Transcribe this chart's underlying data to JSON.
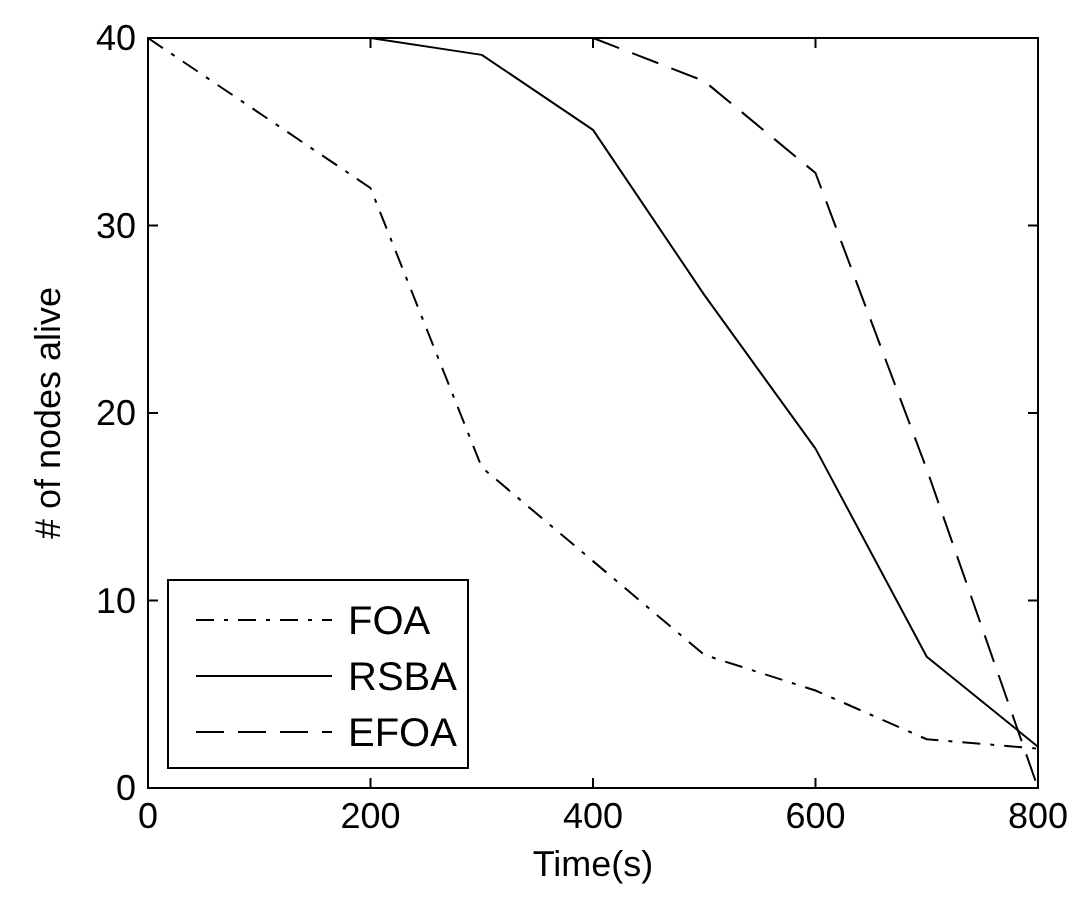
{
  "chart_data": {
    "type": "line",
    "xlabel": "Time(s)",
    "ylabel": "# of nodes alive",
    "xlim": [
      0,
      800
    ],
    "xticks": [
      0,
      200,
      400,
      600,
      800
    ],
    "ylim": [
      0,
      40
    ],
    "yticks": [
      0,
      10,
      20,
      30,
      40
    ],
    "grid": false,
    "legend": "bottom left",
    "marker": "none",
    "series": [
      {
        "name": "FOA",
        "color": "#000000",
        "line_style": "dashdot",
        "x": [
          0,
          200,
          300,
          400,
          500,
          600,
          700,
          800
        ],
        "values": [
          40,
          32,
          17.1,
          12.1,
          7.1,
          5.2,
          2.6,
          2.1
        ]
      },
      {
        "name": "RSBA",
        "color": "#000000",
        "line_style": "solid",
        "x": [
          200,
          300,
          400,
          500,
          600,
          700,
          800
        ],
        "values": [
          40,
          39.1,
          35.1,
          26.3,
          18.1,
          7,
          2.2
        ]
      },
      {
        "name": "EFOA",
        "color": "#000000",
        "line_style": "dashed",
        "x": [
          400,
          500,
          600,
          700,
          800
        ],
        "values": [
          40,
          37.7,
          32.8,
          17,
          0
        ]
      }
    ]
  }
}
